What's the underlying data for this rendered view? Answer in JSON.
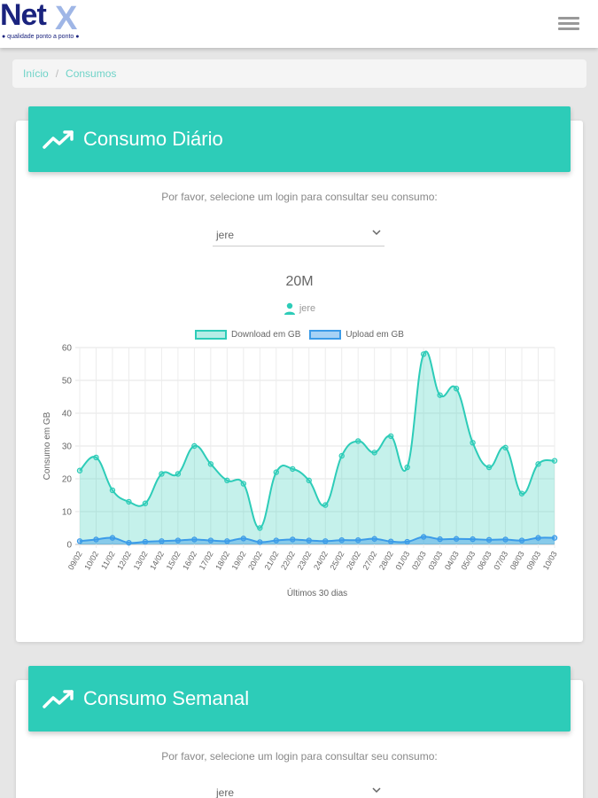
{
  "logo": {
    "name": "Net",
    "mark": "X",
    "tagline": "● qualidade ponto a ponto ●"
  },
  "breadcrumb": {
    "home": "Início",
    "sep": "/",
    "current": "Consumos"
  },
  "daily": {
    "title": "Consumo Diário",
    "prompt": "Por favor, selecione um login para consultar seu consumo:",
    "select_value": "jere",
    "plan": "20M",
    "user": "jere"
  },
  "weekly": {
    "title": "Consumo Semanal",
    "prompt": "Por favor, selecione um login para consultar seu consumo:",
    "select_value": "jere"
  },
  "colors": {
    "accent": "#2dccb8",
    "download": "#2dccb8",
    "upload": "#3b9be8"
  },
  "chart_data": {
    "type": "area",
    "xlabel": "Últimos 30 dias",
    "ylabel": "Consumo em GB",
    "ylim": [
      0,
      60
    ],
    "yticks": [
      0,
      10,
      20,
      30,
      40,
      50,
      60
    ],
    "legend_position": "top",
    "grid": true,
    "categories": [
      "09/02",
      "10/02",
      "11/02",
      "12/02",
      "13/02",
      "14/02",
      "15/02",
      "16/02",
      "17/02",
      "18/02",
      "19/02",
      "20/02",
      "21/02",
      "22/02",
      "23/02",
      "24/02",
      "25/02",
      "26/02",
      "27/02",
      "28/02",
      "01/03",
      "02/03",
      "03/03",
      "04/03",
      "05/03",
      "06/03",
      "07/03",
      "08/03",
      "09/03",
      "10/03"
    ],
    "series": [
      {
        "name": "Download em GB",
        "values": [
          22.5,
          26.5,
          16.5,
          13,
          12.5,
          21.5,
          21.5,
          30,
          24.5,
          19.5,
          18.5,
          5,
          22,
          23,
          19.5,
          12,
          27,
          31.5,
          28,
          33,
          23.5,
          58,
          45.5,
          47.5,
          31,
          23.5,
          29.5,
          15.5,
          24.5,
          25.5
        ]
      },
      {
        "name": "Upload em GB",
        "values": [
          1,
          1.5,
          2,
          0.5,
          0.8,
          1,
          1.2,
          1.5,
          1.2,
          1,
          1.8,
          0.7,
          1.2,
          1.5,
          1.2,
          1,
          1.3,
          1.3,
          1.7,
          0.9,
          0.8,
          2.3,
          1.6,
          1.7,
          1.6,
          1.4,
          1.5,
          1.2,
          2,
          2
        ]
      }
    ]
  }
}
